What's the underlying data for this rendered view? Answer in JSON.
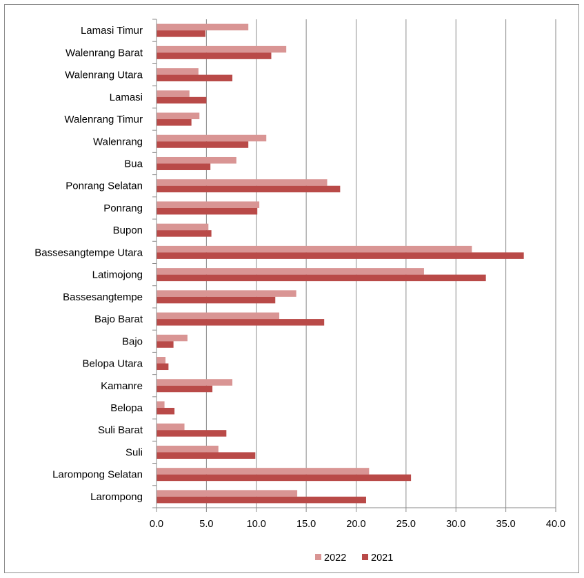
{
  "chart_data": {
    "type": "bar",
    "orientation": "horizontal",
    "title": "",
    "xlabel": "",
    "ylabel": "",
    "xlim": [
      0,
      40
    ],
    "x_ticks": [
      "0.0",
      "5.0",
      "10.0",
      "15.0",
      "20.0",
      "25.0",
      "30.0",
      "35.0",
      "40.0"
    ],
    "grid": "vertical",
    "legend_position": "bottom",
    "categories": [
      "Lamasi Timur",
      "Walenrang Barat",
      "Walenrang Utara",
      "Lamasi",
      "Walenrang Timur",
      "Walenrang",
      "Bua",
      "Ponrang Selatan",
      "Ponrang",
      "Bupon",
      "Bassesangtempe Utara",
      "Latimojong",
      "Bassesangtempe",
      "Bajo Barat",
      "Bajo",
      "Belopa Utara",
      "Kamanre",
      "Belopa",
      "Suli Barat",
      "Suli",
      "Larompong Selatan",
      "Larompong"
    ],
    "series": [
      {
        "name": "2022",
        "color": "#d99594",
        "values": [
          9.2,
          13.0,
          4.2,
          3.3,
          4.3,
          11.0,
          8.0,
          17.1,
          10.3,
          5.2,
          31.6,
          26.8,
          14.0,
          12.3,
          3.1,
          0.9,
          7.6,
          0.8,
          2.8,
          6.2,
          21.3,
          14.1
        ]
      },
      {
        "name": "2021",
        "color": "#b94a48",
        "values": [
          4.9,
          11.5,
          7.6,
          5.0,
          3.5,
          9.2,
          5.4,
          18.4,
          10.1,
          5.5,
          36.8,
          33.0,
          11.9,
          16.8,
          1.7,
          1.2,
          5.6,
          1.8,
          7.0,
          9.9,
          25.5,
          21.0
        ]
      }
    ]
  }
}
